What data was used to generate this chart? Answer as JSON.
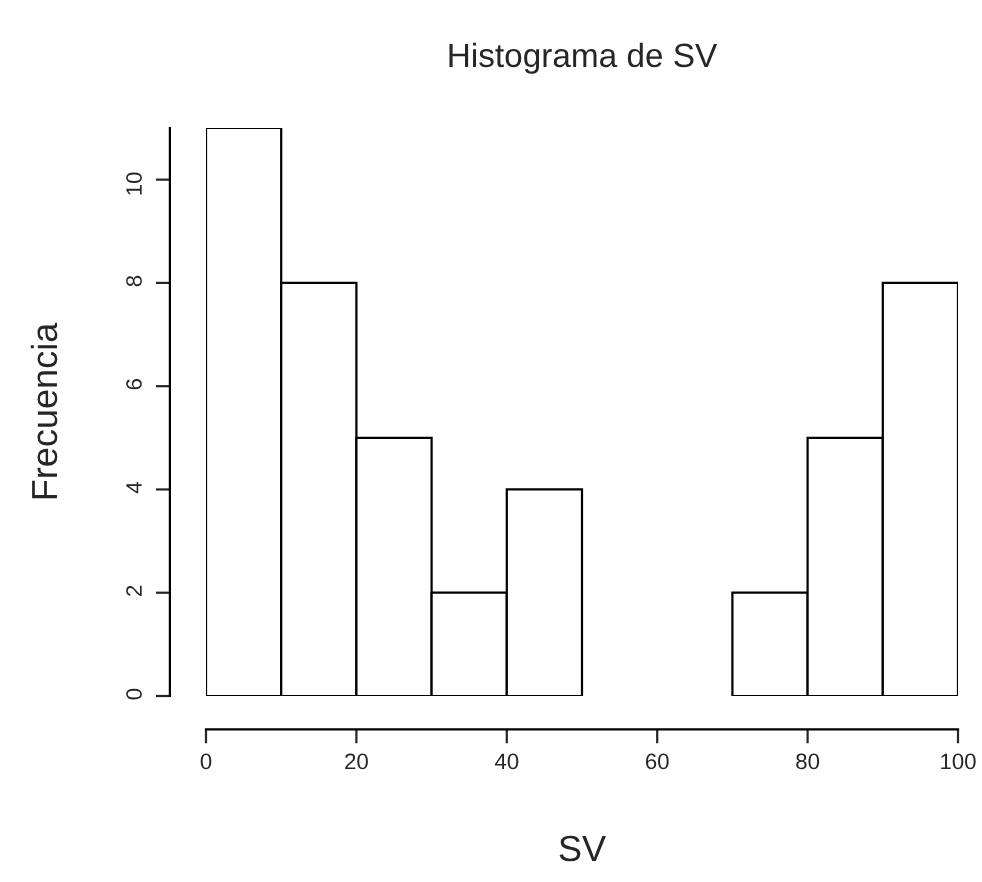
{
  "chart_data": {
    "type": "histogram",
    "title": "Histograma de SV",
    "xlabel": "SV",
    "ylabel": "Frecuencia",
    "bins": [
      0,
      10,
      20,
      30,
      40,
      50,
      60,
      70,
      80,
      90,
      100
    ],
    "values": [
      11,
      8,
      5,
      2,
      4,
      0,
      0,
      2,
      5,
      8
    ],
    "color": "#ffffff",
    "xlim": [
      0,
      100
    ],
    "xticks": [
      0,
      20,
      40,
      60,
      80,
      100
    ],
    "ylim": [
      0,
      11
    ],
    "yticks": [
      0,
      2,
      4,
      6,
      8,
      10
    ],
    "grid": false,
    "legend": false
  }
}
